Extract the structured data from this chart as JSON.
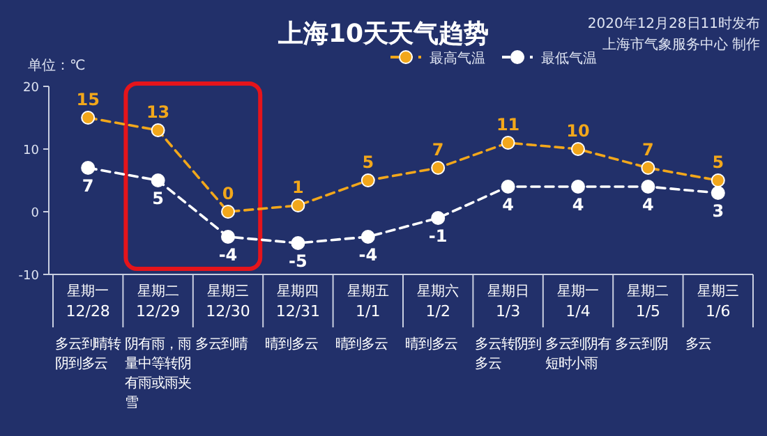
{
  "chart_data": {
    "type": "line",
    "title": "上海10天天气趋势",
    "ylabel": "单位：℃",
    "categories": [
      "星期一 12/28",
      "星期二 12/29",
      "星期三 12/30",
      "星期四 12/31",
      "星期五 1/1",
      "星期六 1/2",
      "星期日 1/3",
      "星期一 1/4",
      "星期二 1/5",
      "星期三 1/6"
    ],
    "series": [
      {
        "name": "最高气温",
        "color": "#f2a71b",
        "values": [
          15,
          13,
          0,
          1,
          5,
          7,
          11,
          10,
          7,
          5
        ]
      },
      {
        "name": "最低气温",
        "color": "#ffffff",
        "values": [
          7,
          5,
          -4,
          -5,
          -4,
          -1,
          4,
          4,
          4,
          3
        ]
      }
    ],
    "ylim": [
      -10,
      20
    ],
    "yticks": [
      -10,
      0,
      10,
      20
    ],
    "grid": false,
    "legend": "top",
    "marker": "circle",
    "line_style": "dashed",
    "data_labels": true,
    "annotations": [
      "2020年12月28日11时发布",
      "上海市气象服务中心 制作",
      "多云到晴转阴到多云",
      "阴有雨，雨量中等转阴有雨或雨夹雪",
      "多云到晴",
      "晴到多云",
      "晴到多云",
      "晴到多云",
      "多云转阴到多云",
      "多云到阴有短时小雨",
      "多云到阴",
      "多云"
    ]
  }
}
